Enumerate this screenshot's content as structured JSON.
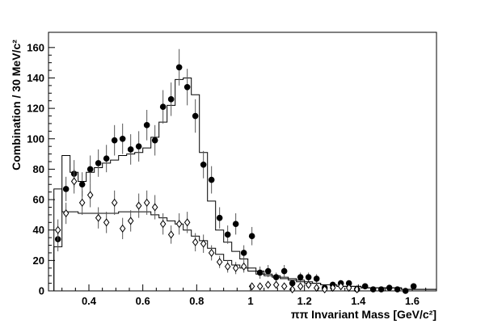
{
  "chart_data": {
    "type": "scatter",
    "title": "",
    "xlabel": "ππ Invariant Mass [GeV/c²]",
    "ylabel": "Combination / 30 MeV/c²",
    "xlim": [
      0.25,
      1.69
    ],
    "ylim": [
      0,
      170
    ],
    "xticks": [
      0.4,
      0.6,
      0.8,
      1,
      1.2,
      1.4,
      1.6
    ],
    "xtick_labels": [
      "0.4",
      "0.6",
      "0.8",
      "1",
      "1.2",
      "1.4",
      "1.6"
    ],
    "yticks": [
      0,
      20,
      40,
      60,
      80,
      100,
      120,
      140,
      160
    ],
    "ytick_labels": [
      "0",
      "20",
      "40",
      "60",
      "80",
      "100",
      "120",
      "140",
      "160"
    ],
    "grid": false,
    "legend": "none",
    "series": [
      {
        "marker": "filled-circle",
        "color": "#000000",
        "x": [
          0.285,
          0.315,
          0.345,
          0.375,
          0.405,
          0.435,
          0.465,
          0.495,
          0.525,
          0.555,
          0.585,
          0.615,
          0.645,
          0.675,
          0.705,
          0.735,
          0.765,
          0.795,
          0.825,
          0.855,
          0.885,
          0.915,
          0.945,
          0.975,
          1.005,
          1.035,
          1.065,
          1.095,
          1.125,
          1.155,
          1.185,
          1.215,
          1.245,
          1.275,
          1.305,
          1.335,
          1.365,
          1.395,
          1.425,
          1.455,
          1.485,
          1.515,
          1.545,
          1.575,
          1.605
        ],
        "y": [
          34,
          67,
          77,
          70,
          80,
          84,
          87,
          99,
          100,
          93,
          95,
          109,
          99,
          121,
          126,
          147,
          134,
          115,
          83,
          73,
          48,
          37,
          44,
          25,
          36,
          12,
          13,
          9,
          13,
          5,
          9,
          9,
          8,
          2,
          4,
          5,
          5,
          1,
          3,
          1,
          1,
          2,
          1,
          0,
          3
        ],
        "yerr": [
          8,
          8,
          9,
          8,
          9,
          9,
          9,
          10,
          10,
          10,
          10,
          10,
          10,
          11,
          11,
          12,
          12,
          11,
          9,
          9,
          7,
          6,
          7,
          5,
          6,
          4,
          4,
          3,
          4,
          2,
          3,
          3,
          3,
          2,
          2,
          2,
          2,
          1,
          2,
          1,
          1,
          1,
          1,
          1,
          2
        ]
      },
      {
        "marker": "open-diamond",
        "color": "#000000",
        "x": [
          0.285,
          0.315,
          0.345,
          0.375,
          0.405,
          0.435,
          0.465,
          0.495,
          0.525,
          0.555,
          0.585,
          0.615,
          0.645,
          0.675,
          0.705,
          0.735,
          0.765,
          0.795,
          0.825,
          0.855,
          0.885,
          0.915,
          0.945,
          0.975,
          1.005,
          1.035,
          1.065,
          1.095,
          1.125,
          1.155,
          1.185,
          1.215,
          1.245,
          1.275,
          1.305,
          1.335,
          1.365,
          1.395
        ],
        "y": [
          40,
          51,
          72,
          58,
          63,
          48,
          45,
          58,
          41,
          46,
          56,
          58,
          55,
          44,
          37,
          44,
          45,
          32,
          31,
          25,
          19,
          16,
          15,
          16,
          3,
          3,
          4,
          4,
          3,
          1,
          3,
          4,
          2,
          1,
          2,
          3,
          2,
          1
        ],
        "yerr": [
          7,
          7,
          8,
          8,
          8,
          7,
          7,
          8,
          7,
          7,
          8,
          8,
          8,
          7,
          6,
          7,
          7,
          6,
          6,
          5,
          4,
          4,
          4,
          4,
          2,
          2,
          2,
          2,
          2,
          1,
          2,
          2,
          1,
          1,
          1,
          2,
          1,
          1
        ]
      }
    ],
    "histograms": [
      {
        "style": "step-line",
        "color": "#000000",
        "edges": [
          0.27,
          0.3,
          0.33,
          0.36,
          0.39,
          0.42,
          0.45,
          0.48,
          0.51,
          0.54,
          0.57,
          0.6,
          0.63,
          0.66,
          0.69,
          0.72,
          0.75,
          0.78,
          0.81,
          0.84,
          0.87,
          0.9,
          0.93,
          0.96,
          0.99,
          1.02,
          1.05,
          1.08,
          1.11,
          1.14,
          1.17,
          1.2,
          1.23,
          1.26,
          1.29,
          1.32,
          1.35,
          1.38,
          1.41,
          1.44,
          1.47,
          1.5,
          1.53,
          1.56,
          1.59,
          1.62,
          1.65,
          1.69
        ],
        "values": [
          29,
          89,
          78,
          72,
          78,
          81,
          84,
          86,
          89,
          90,
          91,
          94,
          101,
          111,
          122,
          139,
          140,
          129,
          91,
          59,
          40,
          32,
          26,
          21,
          15,
          13,
          11,
          10,
          9,
          8,
          7,
          6,
          5,
          4,
          4,
          3,
          3,
          3,
          2,
          2,
          2,
          2,
          2,
          1,
          1,
          1,
          1
        ]
      },
      {
        "style": "step-line",
        "color": "#000000",
        "edges": [
          0.27,
          0.3,
          0.33,
          0.36,
          0.39,
          0.42,
          0.45,
          0.48,
          0.51,
          0.54,
          0.57,
          0.6,
          0.63,
          0.66,
          0.69,
          0.72,
          0.75,
          0.78,
          0.81,
          0.84,
          0.87,
          0.9,
          0.93,
          0.96,
          0.99,
          1.02,
          1.05,
          1.08,
          1.11,
          1.14,
          1.17,
          1.2,
          1.23,
          1.26,
          1.29,
          1.32,
          1.35,
          1.38,
          1.41,
          1.44,
          1.47,
          1.5,
          1.53,
          1.56,
          1.59,
          1.62,
          1.65,
          1.69
        ],
        "values": [
          67,
          52,
          52,
          51,
          51,
          51,
          51,
          51,
          52,
          52,
          52,
          52,
          50,
          48,
          46,
          44,
          40,
          36,
          33,
          28,
          24,
          20,
          17,
          15,
          13,
          11,
          10,
          9,
          8,
          7,
          6,
          5,
          5,
          4,
          4,
          3,
          3,
          3,
          2,
          2,
          2,
          2,
          2,
          1,
          1,
          1,
          1
        ]
      }
    ]
  }
}
